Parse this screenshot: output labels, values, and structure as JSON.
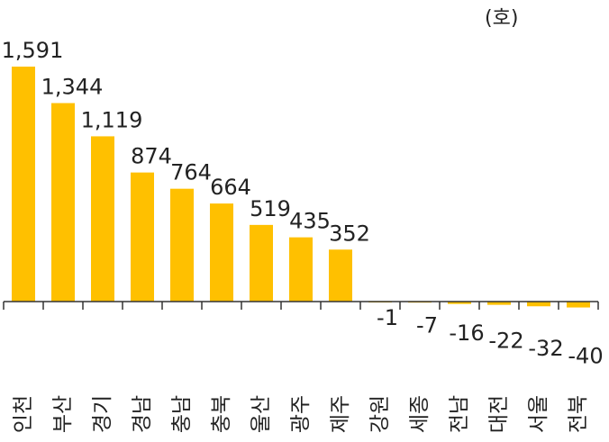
{
  "chart_data": {
    "type": "bar",
    "unit": "(호)",
    "categories": [
      "인천",
      "부산",
      "경기",
      "경남",
      "충남",
      "충북",
      "울산",
      "광주",
      "제주",
      "강원",
      "세종",
      "전남",
      "대전",
      "서울",
      "전북"
    ],
    "values": [
      1591,
      1344,
      1119,
      874,
      764,
      664,
      519,
      435,
      352,
      -1,
      -7,
      -16,
      -22,
      -32,
      -40
    ],
    "value_labels": [
      "1,591",
      "1,344",
      "1,119",
      "874",
      "764",
      "664",
      "519",
      "435",
      "352",
      "-1",
      "-7",
      "-16",
      "-22",
      "-32",
      "-40"
    ],
    "bar_color": "#FFC000",
    "ylim": [
      -60,
      1650
    ],
    "grid": false,
    "legend": "none"
  }
}
